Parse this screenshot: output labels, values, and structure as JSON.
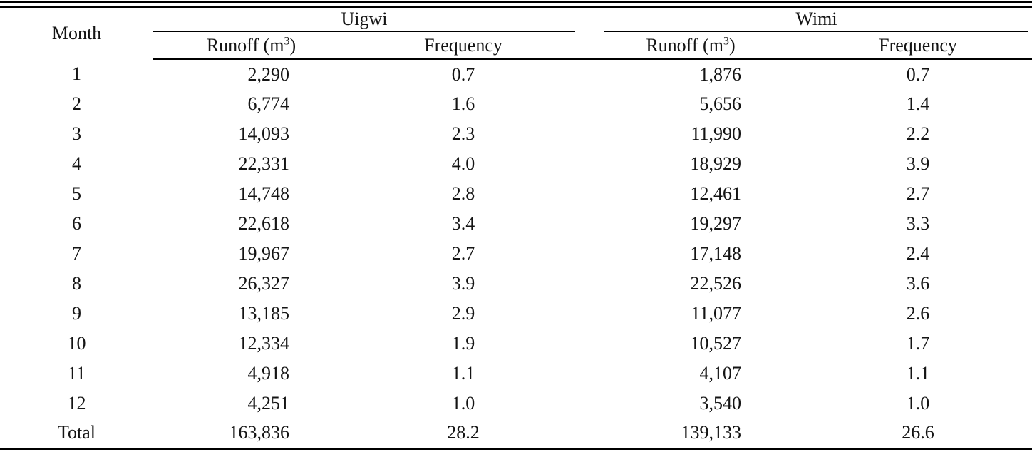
{
  "table": {
    "month_label": "Month",
    "groups": [
      {
        "label": "Uigwi"
      },
      {
        "label": "Wimi"
      }
    ],
    "runoff_header": {
      "prefix": "Runoff (m",
      "sup": "3",
      "suffix": ")"
    },
    "frequency_label": "Frequency",
    "rows": [
      {
        "month": "1",
        "u_runoff": "2,290",
        "u_freq": "0.7",
        "w_runoff": "1,876",
        "w_freq": "0.7"
      },
      {
        "month": "2",
        "u_runoff": "6,774",
        "u_freq": "1.6",
        "w_runoff": "5,656",
        "w_freq": "1.4"
      },
      {
        "month": "3",
        "u_runoff": "14,093",
        "u_freq": "2.3",
        "w_runoff": "11,990",
        "w_freq": "2.2"
      },
      {
        "month": "4",
        "u_runoff": "22,331",
        "u_freq": "4.0",
        "w_runoff": "18,929",
        "w_freq": "3.9"
      },
      {
        "month": "5",
        "u_runoff": "14,748",
        "u_freq": "2.8",
        "w_runoff": "12,461",
        "w_freq": "2.7"
      },
      {
        "month": "6",
        "u_runoff": "22,618",
        "u_freq": "3.4",
        "w_runoff": "19,297",
        "w_freq": "3.3"
      },
      {
        "month": "7",
        "u_runoff": "19,967",
        "u_freq": "2.7",
        "w_runoff": "17,148",
        "w_freq": "2.4"
      },
      {
        "month": "8",
        "u_runoff": "26,327",
        "u_freq": "3.9",
        "w_runoff": "22,526",
        "w_freq": "3.6"
      },
      {
        "month": "9",
        "u_runoff": "13,185",
        "u_freq": "2.9",
        "w_runoff": "11,077",
        "w_freq": "2.6"
      },
      {
        "month": "10",
        "u_runoff": "12,334",
        "u_freq": "1.9",
        "w_runoff": "10,527",
        "w_freq": "1.7"
      },
      {
        "month": "11",
        "u_runoff": "4,918",
        "u_freq": "1.1",
        "w_runoff": "4,107",
        "w_freq": "1.1"
      },
      {
        "month": "12",
        "u_runoff": "4,251",
        "u_freq": "1.0",
        "w_runoff": "3,540",
        "w_freq": "1.0"
      },
      {
        "month": "Total",
        "u_runoff": "163,836",
        "u_freq": "28.2",
        "w_runoff": "139,133",
        "w_freq": "26.6"
      }
    ]
  }
}
